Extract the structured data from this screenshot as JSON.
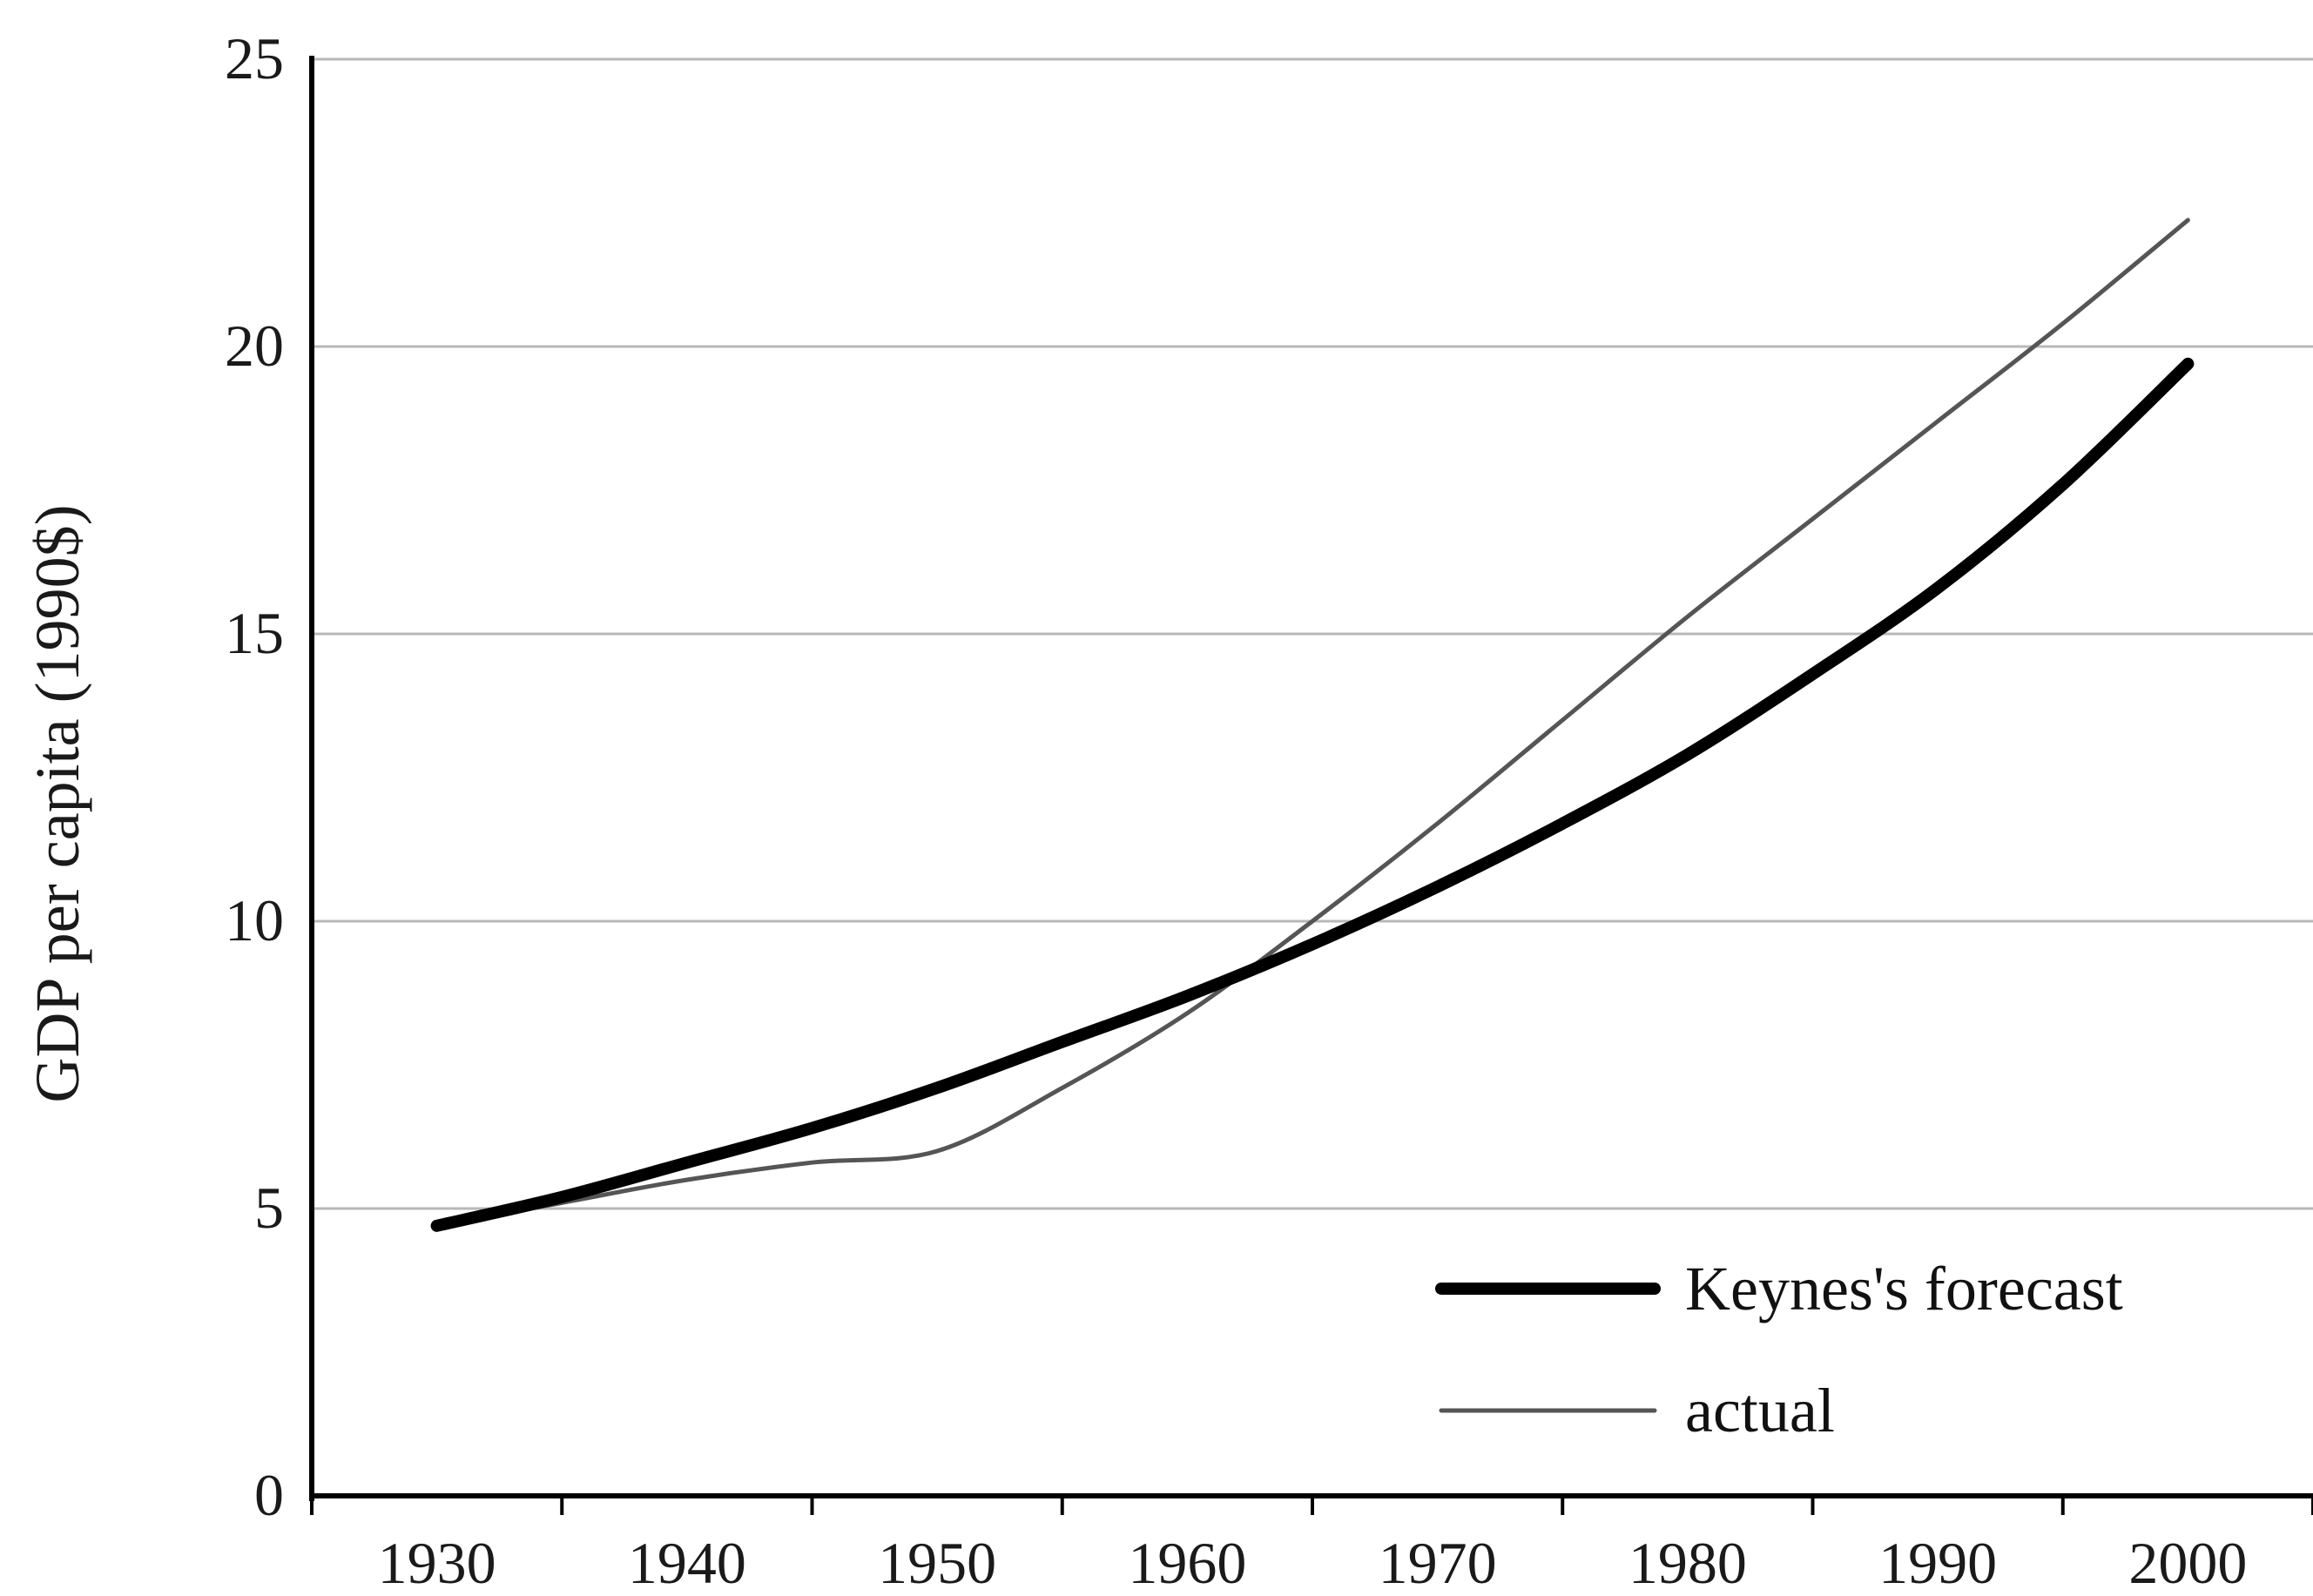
{
  "chart_data": {
    "type": "line",
    "title": "",
    "xlabel": "",
    "ylabel": "GDP per capita (1990$)",
    "xlim": [
      1925,
      2005
    ],
    "ylim": [
      0,
      25
    ],
    "x_ticks": [
      1930,
      1940,
      1950,
      1960,
      1970,
      1980,
      1990,
      2000
    ],
    "y_ticks": [
      0,
      5,
      10,
      15,
      20,
      25
    ],
    "grid": "horizontal",
    "legend_position": "bottom-right",
    "series": [
      {
        "name": "Keynes's forecast",
        "color": "#000000",
        "style": "thick",
        "x": [
          1930,
          1935,
          1940,
          1945,
          1950,
          1955,
          1960,
          1965,
          1970,
          1975,
          1980,
          1985,
          1990,
          1995,
          2000
        ],
        "y": [
          4.7,
          5.2,
          5.8,
          6.4,
          7.1,
          7.9,
          8.7,
          9.6,
          10.6,
          11.7,
          12.9,
          14.3,
          15.8,
          17.6,
          19.7
        ]
      },
      {
        "name": "actual",
        "color": "#555555",
        "style": "thin",
        "x": [
          1930,
          1935,
          1940,
          1945,
          1950,
          1955,
          1960,
          1965,
          1970,
          1975,
          1980,
          1985,
          1990,
          1995,
          2000
        ],
        "y": [
          4.7,
          5.1,
          5.5,
          5.8,
          6.0,
          7.1,
          8.4,
          10.0,
          11.7,
          13.5,
          15.3,
          17.0,
          18.7,
          20.4,
          22.2
        ]
      }
    ]
  }
}
